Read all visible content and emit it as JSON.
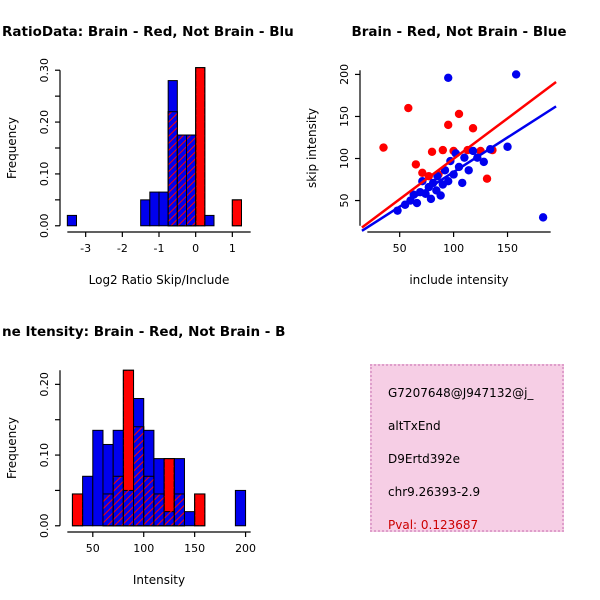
{
  "window": {
    "background": "#ffffff"
  },
  "chart_data": [
    {
      "id": "ratio-histogram",
      "type": "bar",
      "subtype": "overlaid-histogram",
      "title": "RatioData: Brain - Red, Not Brain - Blu",
      "title_align": "left",
      "xlabel": "Log2 Ratio Skip/Include",
      "ylabel": "Frequency",
      "xlim": [
        -3.5,
        1.5
      ],
      "ylim": [
        0,
        0.3
      ],
      "bin_width": 0.25,
      "grid": false,
      "xticks": [
        {
          "v": -3,
          "label": "-3"
        },
        {
          "v": -2,
          "label": "-2"
        },
        {
          "v": -1,
          "label": "-1"
        },
        {
          "v": 0,
          "label": "0"
        },
        {
          "v": 1,
          "label": "1"
        }
      ],
      "yticks": [
        {
          "v": 0,
          "label": "0.00"
        },
        {
          "v": 0.05,
          "label": ""
        },
        {
          "v": 0.1,
          "label": "0.10"
        },
        {
          "v": 0.15,
          "label": ""
        },
        {
          "v": 0.2,
          "label": "0.20"
        },
        {
          "v": 0.25,
          "label": ""
        },
        {
          "v": 0.3,
          "label": "0.30"
        }
      ],
      "series": [
        {
          "name": "Brain (red)",
          "color": "#FF0000",
          "hatch_overlay": true,
          "bins": [
            {
              "x": -0.75,
              "h": 0.22
            },
            {
              "x": -0.5,
              "h": 0.175
            },
            {
              "x": -0.25,
              "h": 0.175
            },
            {
              "x": 0.0,
              "h": 0.305
            },
            {
              "x": 1.0,
              "h": 0.05
            }
          ]
        },
        {
          "name": "Not Brain (blue)",
          "color": "#0000EE",
          "bins": [
            {
              "x": -3.5,
              "h": 0.02
            },
            {
              "x": -1.5,
              "h": 0.05
            },
            {
              "x": -1.25,
              "h": 0.065
            },
            {
              "x": -1.0,
              "h": 0.065
            },
            {
              "x": -0.75,
              "h": 0.28
            },
            {
              "x": -0.5,
              "h": 0.175
            },
            {
              "x": -0.25,
              "h": 0.175
            },
            {
              "x": 0.25,
              "h": 0.02
            }
          ]
        }
      ]
    },
    {
      "id": "intensity-scatter",
      "type": "scatter",
      "title": "Brain - Red, Not Brain - Blue",
      "title_align": "center",
      "xlabel": "include intensity",
      "ylabel": "skip intensity",
      "xlim": [
        20,
        190
      ],
      "ylim": [
        20,
        205
      ],
      "grid": false,
      "xticks": [
        {
          "v": 50,
          "label": "50"
        },
        {
          "v": 100,
          "label": "100"
        },
        {
          "v": 150,
          "label": "150"
        }
      ],
      "yticks": [
        {
          "v": 50,
          "label": "50"
        },
        {
          "v": 100,
          "label": "100"
        },
        {
          "v": 150,
          "label": "150"
        },
        {
          "v": 200,
          "label": "200"
        }
      ],
      "series": [
        {
          "name": "Brain (red)",
          "color": "#FF0000",
          "points": [
            [
              35,
              113
            ],
            [
              58,
              160
            ],
            [
              65,
              93
            ],
            [
              71,
              83
            ],
            [
              77,
              79
            ],
            [
              80,
              108
            ],
            [
              86,
              81
            ],
            [
              90,
              110
            ],
            [
              95,
              140
            ],
            [
              100,
              109
            ],
            [
              105,
              153
            ],
            [
              113,
              110
            ],
            [
              118,
              136
            ],
            [
              125,
              109
            ],
            [
              131,
              76
            ],
            [
              136,
              110
            ]
          ],
          "line": [
            [
              15,
              18
            ],
            [
              195,
              191
            ]
          ]
        },
        {
          "name": "Not Brain (blue)",
          "color": "#0000EE",
          "points": [
            [
              48,
              38
            ],
            [
              55,
              45
            ],
            [
              60,
              50
            ],
            [
              63,
              57
            ],
            [
              66,
              47
            ],
            [
              69,
              60
            ],
            [
              71,
              73
            ],
            [
              74,
              58
            ],
            [
              77,
              66
            ],
            [
              79,
              52
            ],
            [
              81,
              71
            ],
            [
              84,
              62
            ],
            [
              85,
              79
            ],
            [
              88,
              56
            ],
            [
              90,
              69
            ],
            [
              92,
              86
            ],
            [
              95,
              73
            ],
            [
              97,
              97
            ],
            [
              100,
              81
            ],
            [
              102,
              106
            ],
            [
              105,
              90
            ],
            [
              108,
              71
            ],
            [
              110,
              101
            ],
            [
              114,
              86
            ],
            [
              118,
              109
            ],
            [
              122,
              101
            ],
            [
              128,
              96
            ],
            [
              134,
              111
            ],
            [
              150,
              114
            ],
            [
              95,
              196
            ],
            [
              158,
              200
            ],
            [
              183,
              30
            ]
          ],
          "line": [
            [
              15,
              14
            ],
            [
              195,
              162
            ]
          ]
        }
      ]
    },
    {
      "id": "gene-intensity-histogram",
      "type": "bar",
      "subtype": "overlaid-histogram",
      "title": "ne Itensity: Brain - Red, Not Brain - B",
      "title_align": "left",
      "xlabel": "Intensity",
      "ylabel": "Frequency",
      "xlim": [
        25,
        205
      ],
      "ylim": [
        0,
        0.22
      ],
      "bin_width": 10,
      "grid": false,
      "xticks": [
        {
          "v": 50,
          "label": "50"
        },
        {
          "v": 100,
          "label": "100"
        },
        {
          "v": 150,
          "label": "150"
        },
        {
          "v": 200,
          "label": "200"
        }
      ],
      "yticks": [
        {
          "v": 0,
          "label": "0.00"
        },
        {
          "v": 0.05,
          "label": ""
        },
        {
          "v": 0.1,
          "label": "0.10"
        },
        {
          "v": 0.15,
          "label": ""
        },
        {
          "v": 0.2,
          "label": "0.20"
        }
      ],
      "series": [
        {
          "name": "Brain (red)",
          "color": "#FF0000",
          "hatch_overlay": true,
          "bins": [
            {
              "x": 30,
              "h": 0.045
            },
            {
              "x": 60,
              "h": 0.045
            },
            {
              "x": 70,
              "h": 0.07
            },
            {
              "x": 80,
              "h": 0.22
            },
            {
              "x": 90,
              "h": 0.14
            },
            {
              "x": 100,
              "h": 0.07
            },
            {
              "x": 110,
              "h": 0.045
            },
            {
              "x": 120,
              "h": 0.095
            },
            {
              "x": 130,
              "h": 0.045
            },
            {
              "x": 150,
              "h": 0.045
            }
          ]
        },
        {
          "name": "Not Brain (blue)",
          "color": "#0000EE",
          "bins": [
            {
              "x": 40,
              "h": 0.07
            },
            {
              "x": 50,
              "h": 0.135
            },
            {
              "x": 60,
              "h": 0.115
            },
            {
              "x": 70,
              "h": 0.135
            },
            {
              "x": 80,
              "h": 0.05
            },
            {
              "x": 90,
              "h": 0.18
            },
            {
              "x": 100,
              "h": 0.135
            },
            {
              "x": 110,
              "h": 0.095
            },
            {
              "x": 120,
              "h": 0.02
            },
            {
              "x": 130,
              "h": 0.095
            },
            {
              "x": 140,
              "h": 0.02
            },
            {
              "x": 190,
              "h": 0.05
            }
          ]
        }
      ]
    }
  ],
  "info_box": {
    "background": "#F6CEE5",
    "border_color": "#DE9ECB",
    "text_color": "#000000",
    "pval_color": "#CC0000",
    "lines": [
      "G7207648@J947132@j_",
      "altTxEnd",
      "D9Ertd392e",
      "chr9.26393-2.9"
    ],
    "pval": "Pval: 0.123687"
  }
}
